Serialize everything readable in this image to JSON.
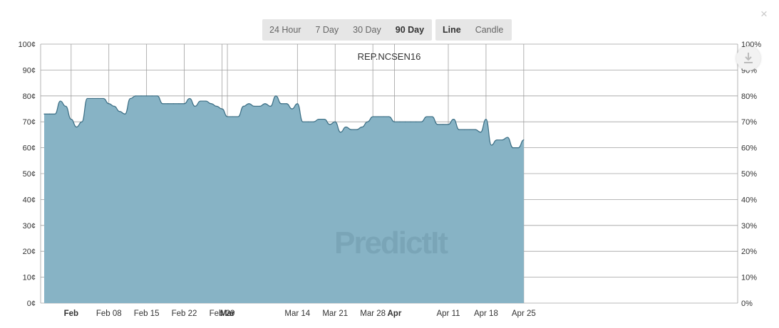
{
  "controls": {
    "range_options": [
      {
        "label": "24 Hour",
        "active": false
      },
      {
        "label": "7 Day",
        "active": false
      },
      {
        "label": "30 Day",
        "active": false
      },
      {
        "label": "90 Day",
        "active": true
      }
    ],
    "type_options": [
      {
        "label": "Line",
        "active": true
      },
      {
        "label": "Candle",
        "active": false
      }
    ],
    "close_label": "×"
  },
  "watermark": "PredictIt",
  "icons": {
    "download": "download-icon",
    "close": "close-icon"
  },
  "colors": {
    "area_fill": "#87b3c5",
    "line": "#3b6e84",
    "grid": "#a0a0a0"
  },
  "chart_data": {
    "type": "area",
    "title": "REP.NCSEN16",
    "y_unit": "¢",
    "ylim": [
      0,
      100
    ],
    "y_ticks_left": [
      "0¢",
      "10¢",
      "20¢",
      "30¢",
      "40¢",
      "50¢",
      "60¢",
      "70¢",
      "80¢",
      "90¢",
      "100¢"
    ],
    "y_ticks_right": [
      "0%",
      "10%",
      "20%",
      "30%",
      "40%",
      "50%",
      "60%",
      "70%",
      "80%",
      "90%",
      "100%"
    ],
    "x_ticks": [
      {
        "label": "Feb",
        "bold": true
      },
      {
        "label": "Feb 08",
        "bold": false
      },
      {
        "label": "Feb 15",
        "bold": false
      },
      {
        "label": "Feb 22",
        "bold": false
      },
      {
        "label": "Feb 29",
        "bold": false
      },
      {
        "label": "Mar",
        "bold": true
      },
      {
        "label": "Mar 14",
        "bold": false
      },
      {
        "label": "Mar 21",
        "bold": false
      },
      {
        "label": "Mar 28",
        "bold": false
      },
      {
        "label": "Apr",
        "bold": true
      },
      {
        "label": "Apr 11",
        "bold": false
      },
      {
        "label": "Apr 18",
        "bold": false
      },
      {
        "label": "Apr 25",
        "bold": false
      }
    ],
    "x_start": "Jan 27",
    "series": [
      {
        "points": [
          [
            "Jan 27",
            73
          ],
          [
            "Jan 28",
            73
          ],
          [
            "Jan 29",
            73
          ],
          [
            "Jan 30",
            78
          ],
          [
            "Jan 31",
            76
          ],
          [
            "Feb 01",
            71
          ],
          [
            "Feb 02",
            68
          ],
          [
            "Feb 03",
            70
          ],
          [
            "Feb 04",
            79
          ],
          [
            "Feb 05",
            79
          ],
          [
            "Feb 06",
            79
          ],
          [
            "Feb 07",
            79
          ],
          [
            "Feb 08",
            77
          ],
          [
            "Feb 09",
            76
          ],
          [
            "Feb 10",
            74
          ],
          [
            "Feb 11",
            73
          ],
          [
            "Feb 12",
            79
          ],
          [
            "Feb 13",
            80
          ],
          [
            "Feb 14",
            80
          ],
          [
            "Feb 15",
            80
          ],
          [
            "Feb 16",
            80
          ],
          [
            "Feb 17",
            80
          ],
          [
            "Feb 18",
            77
          ],
          [
            "Feb 19",
            77
          ],
          [
            "Feb 20",
            77
          ],
          [
            "Feb 21",
            77
          ],
          [
            "Feb 22",
            77
          ],
          [
            "Feb 23",
            79
          ],
          [
            "Feb 24",
            76
          ],
          [
            "Feb 25",
            78
          ],
          [
            "Feb 26",
            78
          ],
          [
            "Feb 27",
            77
          ],
          [
            "Feb 28",
            76
          ],
          [
            "Feb 29",
            75
          ],
          [
            "Mar 01",
            72
          ],
          [
            "Mar 02",
            72
          ],
          [
            "Mar 03",
            72
          ],
          [
            "Mar 04",
            76
          ],
          [
            "Mar 05",
            77
          ],
          [
            "Mar 06",
            76
          ],
          [
            "Mar 07",
            76
          ],
          [
            "Mar 08",
            77
          ],
          [
            "Mar 09",
            76
          ],
          [
            "Mar 10",
            80
          ],
          [
            "Mar 11",
            77
          ],
          [
            "Mar 12",
            77
          ],
          [
            "Mar 13",
            75
          ],
          [
            "Mar 14",
            77
          ],
          [
            "Mar 15",
            70
          ],
          [
            "Mar 16",
            70
          ],
          [
            "Mar 17",
            70
          ],
          [
            "Mar 18",
            71
          ],
          [
            "Mar 19",
            71
          ],
          [
            "Mar 20",
            69
          ],
          [
            "Mar 21",
            70
          ],
          [
            "Mar 22",
            66
          ],
          [
            "Mar 23",
            68
          ],
          [
            "Mar 24",
            67
          ],
          [
            "Mar 25",
            67
          ],
          [
            "Mar 26",
            68
          ],
          [
            "Mar 27",
            70
          ],
          [
            "Mar 28",
            72
          ],
          [
            "Mar 29",
            72
          ],
          [
            "Mar 30",
            72
          ],
          [
            "Mar 31",
            72
          ],
          [
            "Apr 01",
            70
          ],
          [
            "Apr 02",
            70
          ],
          [
            "Apr 03",
            70
          ],
          [
            "Apr 04",
            70
          ],
          [
            "Apr 05",
            70
          ],
          [
            "Apr 06",
            70
          ],
          [
            "Apr 07",
            72
          ],
          [
            "Apr 08",
            72
          ],
          [
            "Apr 09",
            69
          ],
          [
            "Apr 10",
            69
          ],
          [
            "Apr 11",
            69
          ],
          [
            "Apr 12",
            71
          ],
          [
            "Apr 13",
            67
          ],
          [
            "Apr 14",
            67
          ],
          [
            "Apr 15",
            67
          ],
          [
            "Apr 16",
            67
          ],
          [
            "Apr 17",
            66
          ],
          [
            "Apr 18",
            71
          ],
          [
            "Apr 19",
            61
          ],
          [
            "Apr 20",
            63
          ],
          [
            "Apr 21",
            63
          ],
          [
            "Apr 22",
            64
          ],
          [
            "Apr 23",
            60
          ],
          [
            "Apr 24",
            60
          ],
          [
            "Apr 25",
            63
          ]
        ]
      }
    ],
    "grid": true,
    "legend": "none"
  }
}
